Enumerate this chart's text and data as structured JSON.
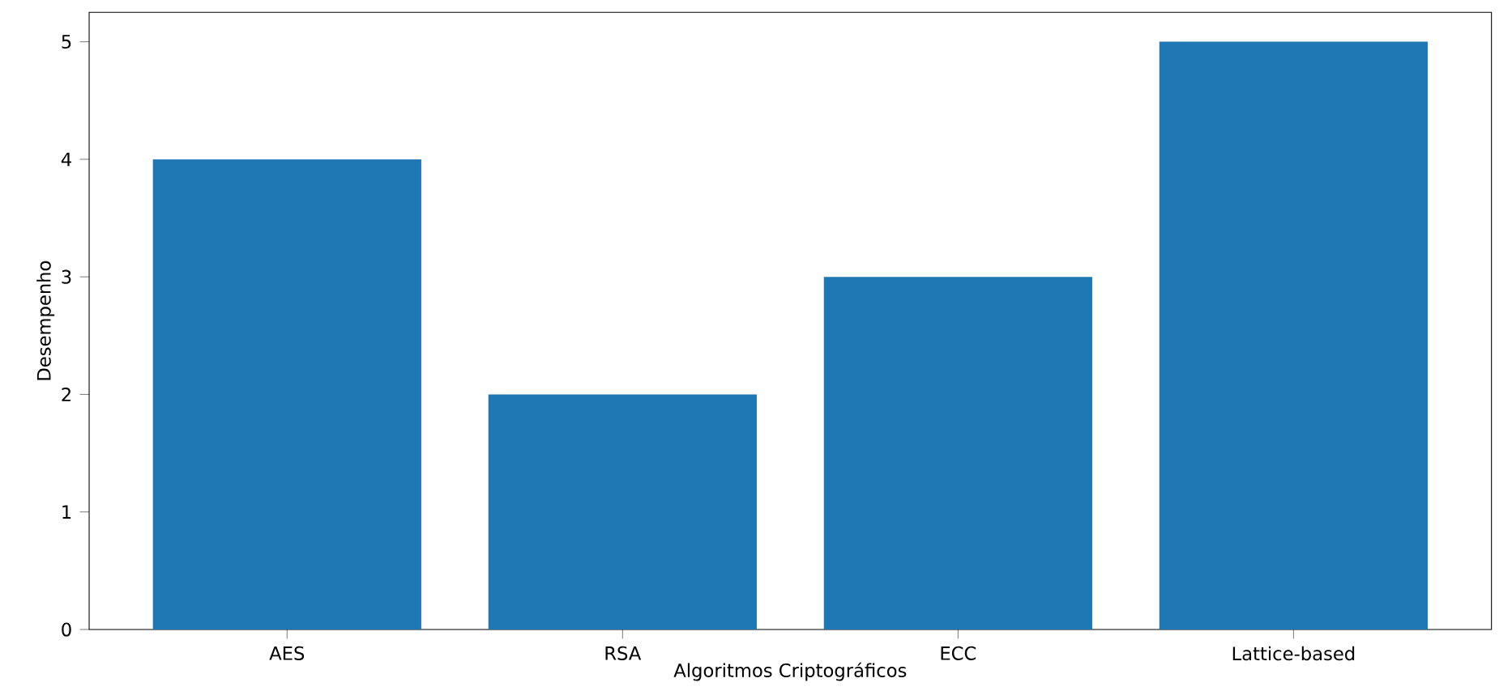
{
  "chart_data": {
    "type": "bar",
    "xlabel": "Algoritmos Criptográficos",
    "ylabel": "Desempenho",
    "categories": [
      "AES",
      "RSA",
      "ECC",
      "Lattice-based"
    ],
    "values": [
      4,
      2,
      3,
      5
    ],
    "color": "#1f77b4",
    "ylim": [
      0,
      5.25
    ],
    "yticks": [
      0,
      1,
      2,
      3,
      4,
      5
    ]
  }
}
